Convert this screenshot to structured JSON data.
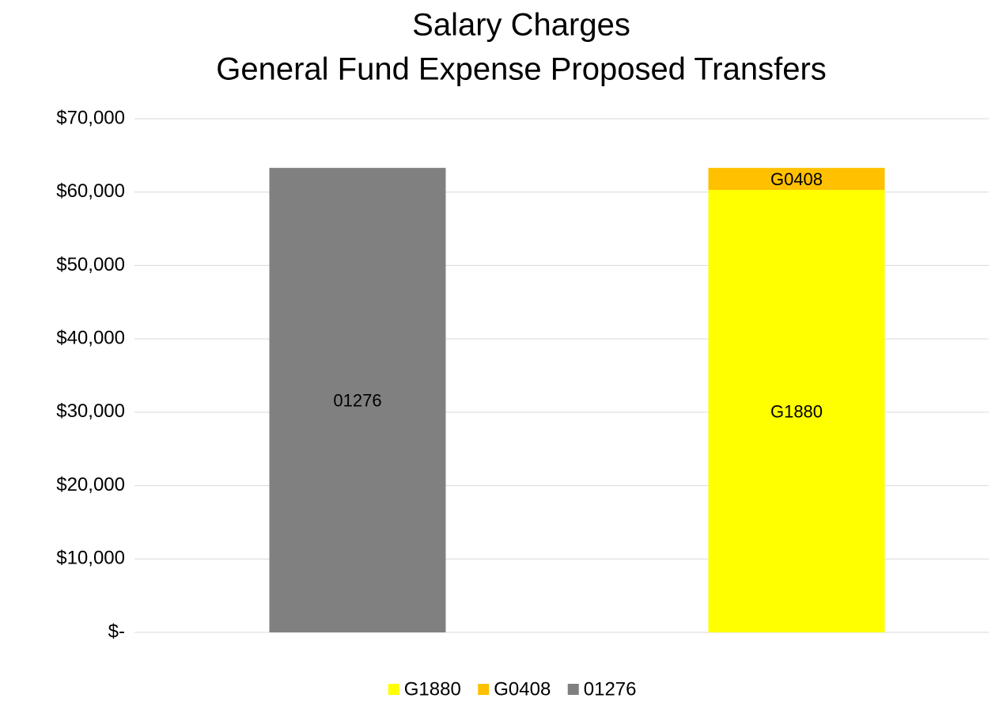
{
  "chart_data": {
    "type": "stacked_bar",
    "title": [
      "Salary Charges",
      "General Fund Expense Proposed Transfers"
    ],
    "categories": [
      null,
      null
    ],
    "series": [
      {
        "name": "G1880",
        "color": "#ffff00",
        "values": [
          null,
          60300
        ]
      },
      {
        "name": "G0408",
        "color": "#ffc000",
        "values": [
          null,
          3000
        ]
      },
      {
        "name": "01276",
        "color": "#808080",
        "values": [
          63300,
          null
        ]
      }
    ],
    "ylim": [
      0,
      70000
    ],
    "yticks": [
      {
        "value": 0,
        "label": "$-"
      },
      {
        "value": 10000,
        "label": "$10,000"
      },
      {
        "value": 20000,
        "label": "$20,000"
      },
      {
        "value": 30000,
        "label": "$30,000"
      },
      {
        "value": 40000,
        "label": "$40,000"
      },
      {
        "value": 50000,
        "label": "$50,000"
      },
      {
        "value": 60000,
        "label": "$60,000"
      },
      {
        "value": 70000,
        "label": "$70,000"
      }
    ],
    "grid": true,
    "legend": "bottom"
  }
}
